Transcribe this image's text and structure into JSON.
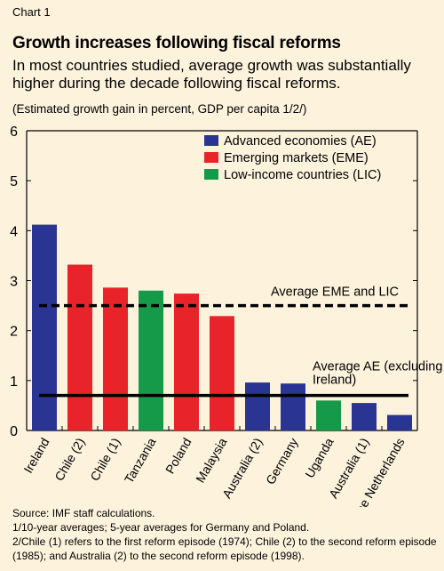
{
  "header": {
    "chart_number": "Chart 1",
    "title": "Growth increases following fiscal reforms",
    "subtitle": "In most countries studied, average growth was substantially higher during the decade following fiscal reforms.",
    "units": "(Estimated growth gain in percent, GDP per capita 1/2/)"
  },
  "colors": {
    "background": "#fdf3dd",
    "AE": "#2a3593",
    "EME": "#e8232a",
    "LIC": "#159a4a"
  },
  "chart_data": {
    "type": "bar",
    "categories": [
      "Ireland",
      "Chile (2)",
      "Chile (1)",
      "Tanzania",
      "Poland",
      "Malaysia",
      "Australia (2)",
      "Germany",
      "Uganda",
      "Australia (1)",
      "The Netherlands"
    ],
    "groups": [
      "AE",
      "EME",
      "EME",
      "LIC",
      "EME",
      "EME",
      "AE",
      "AE",
      "LIC",
      "AE",
      "AE"
    ],
    "values": [
      4.12,
      3.32,
      2.86,
      2.8,
      2.74,
      2.29,
      0.96,
      0.94,
      0.6,
      0.55,
      0.31
    ],
    "ylim": [
      0,
      6
    ],
    "yticks": [
      "0",
      "1",
      "2",
      "3",
      "4",
      "5",
      "6"
    ],
    "legend": [
      {
        "group": "AE",
        "label": "Advanced economies (AE)"
      },
      {
        "group": "EME",
        "label": "Emerging markets (EME)"
      },
      {
        "group": "LIC",
        "label": "Low-income countries (LIC)"
      }
    ],
    "legend_position": "top-right",
    "reference_lines": [
      {
        "label": "Average EME and LIC",
        "value": 2.5,
        "style": "dashed"
      },
      {
        "label": "Average AE (excluding Ireland)",
        "label_lines": [
          "Average AE (excluding",
          "Ireland)"
        ],
        "value": 0.7,
        "style": "solid"
      }
    ],
    "grid": false
  },
  "footnotes": {
    "source": "Source: IMF staff calculations.",
    "note1": "1/10-year averages; 5-year averages for Germany and Poland.",
    "note2": "2/Chile (1) refers to the first reform episode (1974); Chile (2) to the second reform episode (1985); and Australia (2) to the second reform episode (1998)."
  }
}
